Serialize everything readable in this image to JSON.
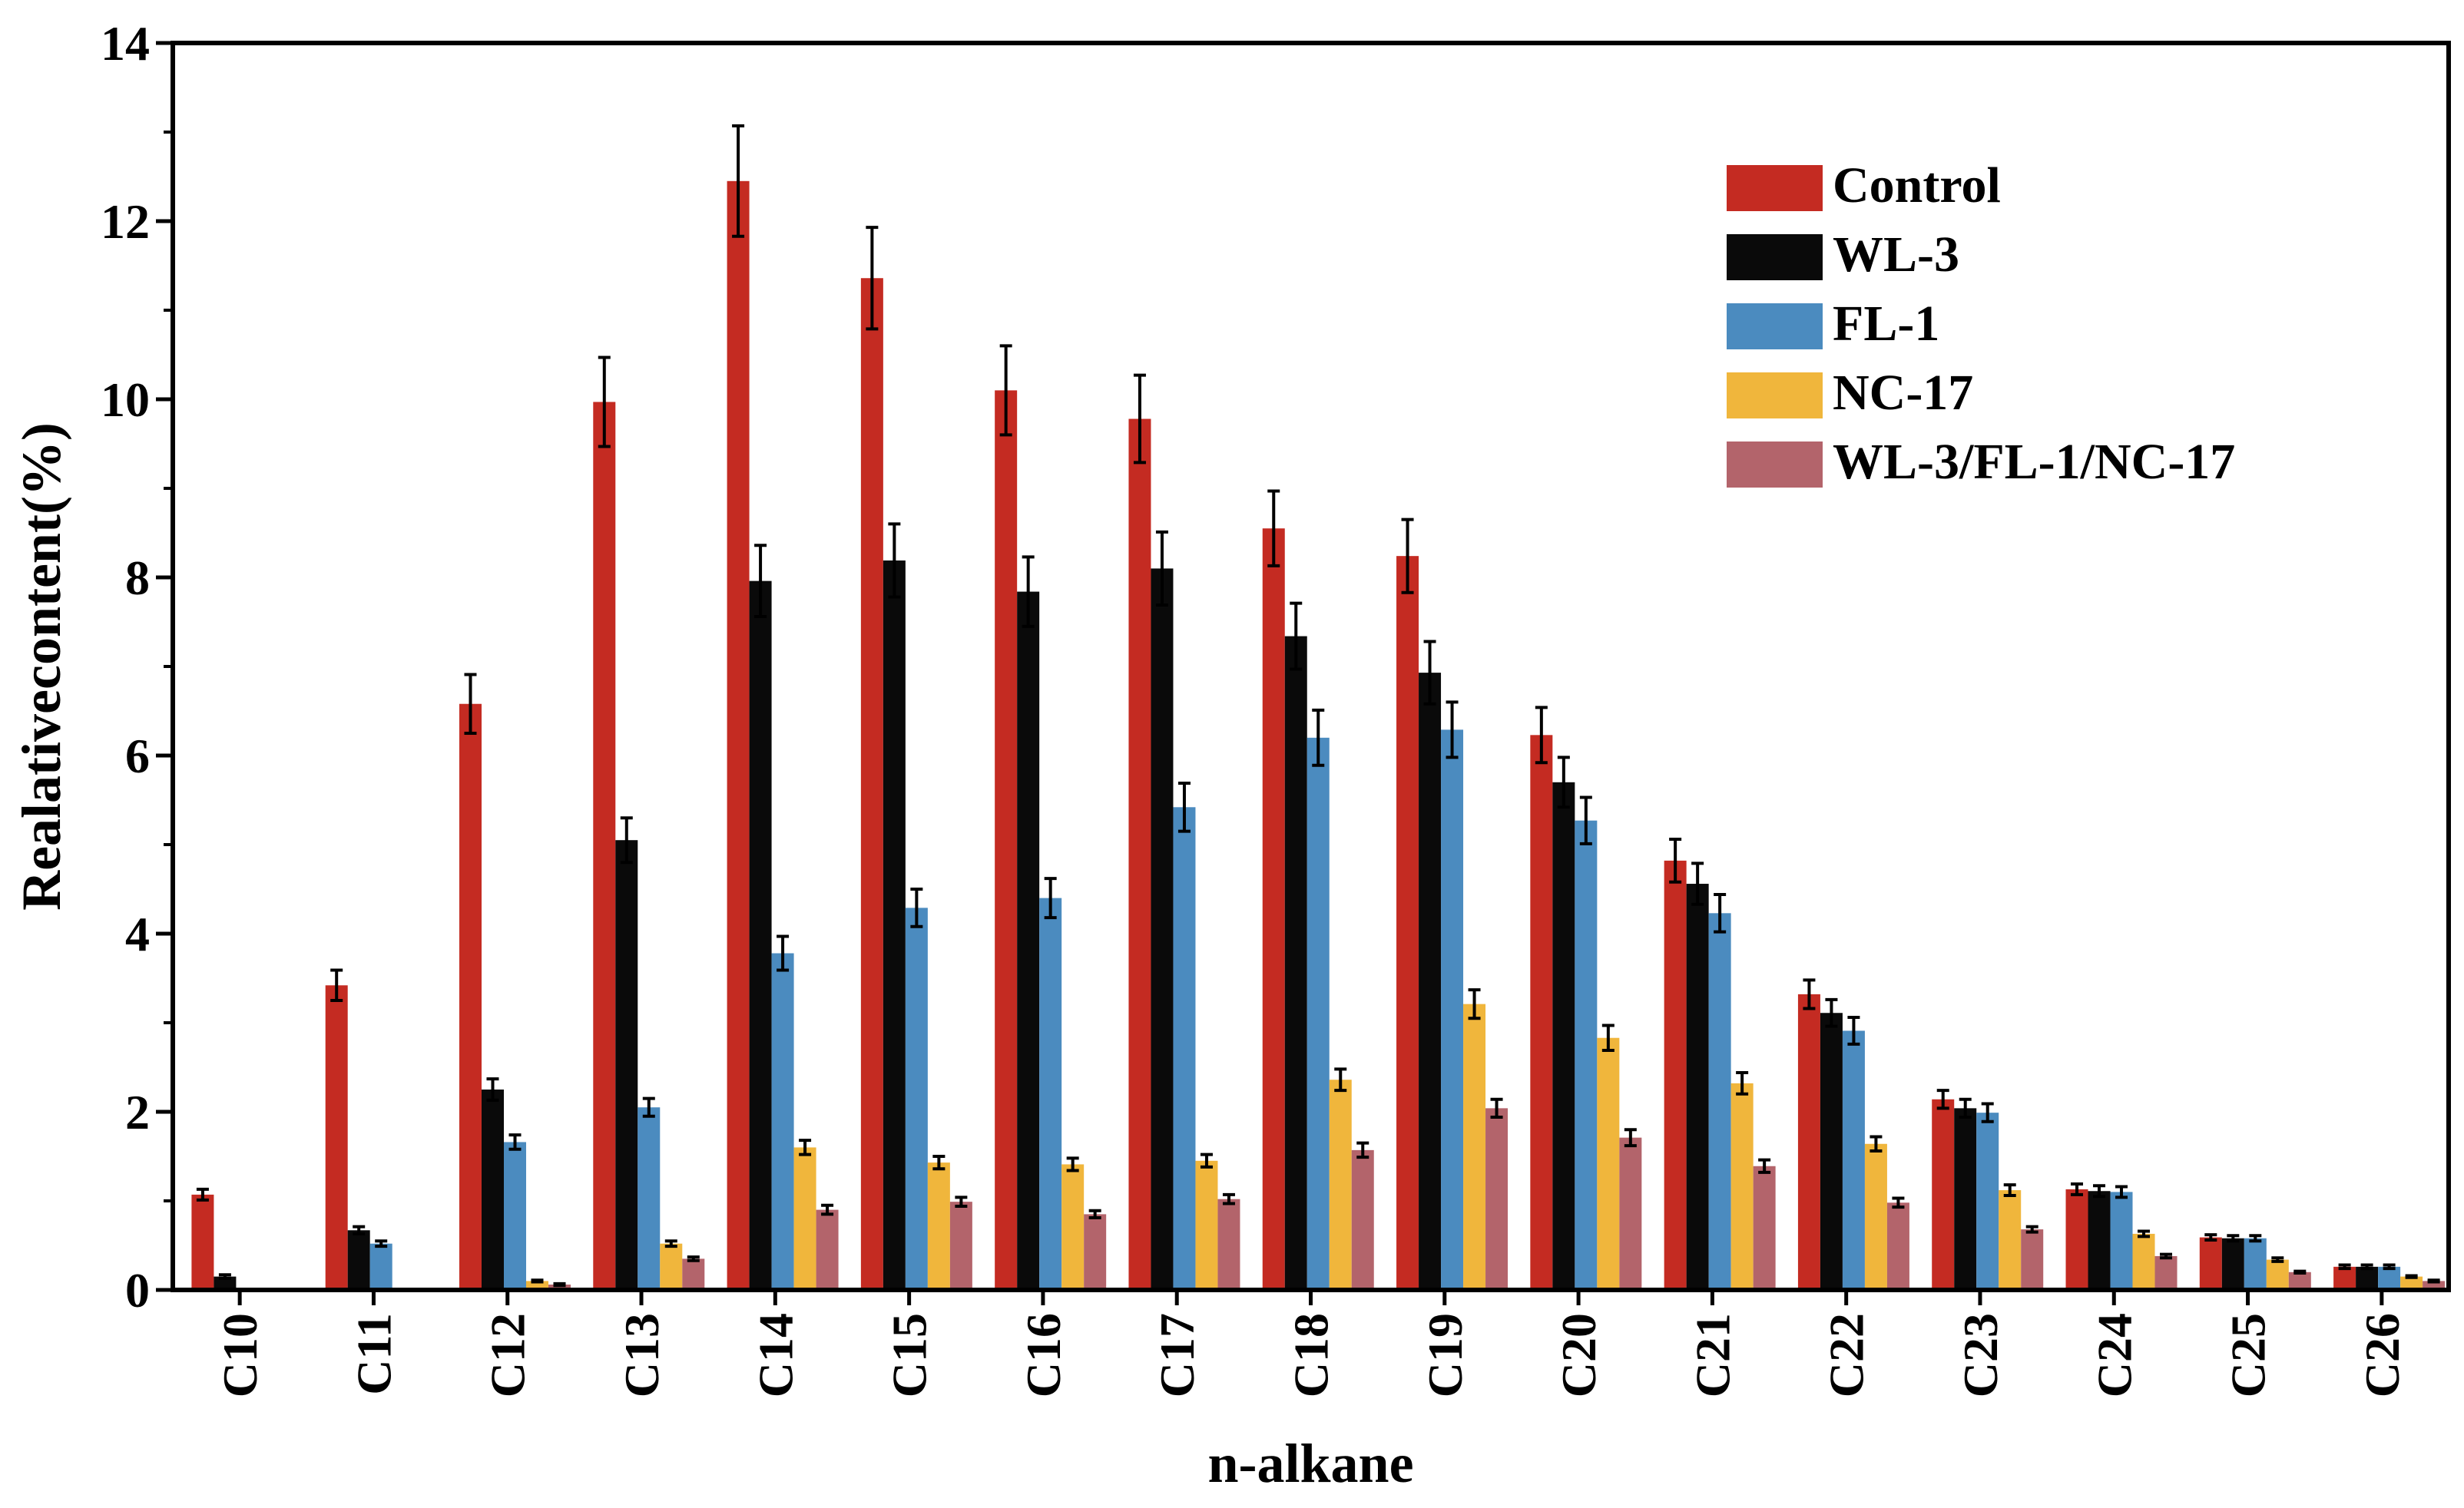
{
  "chart_data": {
    "type": "bar",
    "title": "",
    "xlabel": "n-alkane",
    "ylabel": "Realativecontent(%)",
    "ylim": [
      0,
      14
    ],
    "yticks": [
      0,
      2,
      4,
      6,
      8,
      10,
      12,
      14
    ],
    "legend_position": "top-right",
    "categories": [
      "C10",
      "C11",
      "C12",
      "C13",
      "C14",
      "C15",
      "C16",
      "C17",
      "C18",
      "C19",
      "C20",
      "C21",
      "C22",
      "C23",
      "C24",
      "C25",
      "C26"
    ],
    "series": [
      {
        "name": "Control",
        "color": "#c42b22",
        "values": [
          1.07,
          3.42,
          6.58,
          9.97,
          12.45,
          11.36,
          10.1,
          9.78,
          8.55,
          8.24,
          6.23,
          4.82,
          3.32,
          2.14,
          1.13,
          0.59,
          0.26
        ],
        "errors": [
          0.06,
          0.17,
          0.33,
          0.5,
          0.62,
          0.57,
          0.5,
          0.49,
          0.42,
          0.41,
          0.31,
          0.24,
          0.16,
          0.1,
          0.06,
          0.03,
          0.02
        ]
      },
      {
        "name": "WL-3",
        "color": "#0a0a0a",
        "values": [
          0.15,
          0.67,
          2.25,
          5.05,
          7.96,
          8.19,
          7.84,
          8.1,
          7.34,
          6.93,
          5.7,
          4.56,
          3.11,
          2.04,
          1.11,
          0.58,
          0.26
        ],
        "errors": [
          0.02,
          0.04,
          0.12,
          0.25,
          0.4,
          0.41,
          0.39,
          0.41,
          0.37,
          0.35,
          0.28,
          0.23,
          0.15,
          0.1,
          0.06,
          0.03,
          0.02
        ]
      },
      {
        "name": "FL-1",
        "color": "#4b8bbf",
        "values": [
          0,
          0.52,
          1.66,
          2.05,
          3.78,
          4.29,
          4.4,
          5.42,
          6.2,
          6.29,
          5.27,
          4.23,
          2.91,
          1.99,
          1.1,
          0.58,
          0.26
        ],
        "errors": [
          0,
          0.03,
          0.08,
          0.1,
          0.19,
          0.21,
          0.22,
          0.27,
          0.31,
          0.31,
          0.26,
          0.21,
          0.15,
          0.1,
          0.06,
          0.03,
          0.02
        ]
      },
      {
        "name": "NC-17",
        "color": "#f0b63c",
        "values": [
          0,
          0,
          0.1,
          0.52,
          1.6,
          1.43,
          1.41,
          1.45,
          2.36,
          3.21,
          2.83,
          2.32,
          1.64,
          1.12,
          0.63,
          0.34,
          0.15
        ],
        "errors": [
          0,
          0,
          0.01,
          0.03,
          0.08,
          0.07,
          0.07,
          0.07,
          0.12,
          0.16,
          0.14,
          0.12,
          0.08,
          0.06,
          0.03,
          0.02,
          0.01
        ]
      },
      {
        "name": "WL-3/FL-1/NC-17",
        "color": "#b3646b",
        "values": [
          0,
          0,
          0.06,
          0.35,
          0.9,
          0.99,
          0.85,
          1.02,
          1.57,
          2.04,
          1.71,
          1.39,
          0.98,
          0.68,
          0.38,
          0.2,
          0.1
        ],
        "errors": [
          0,
          0,
          0.01,
          0.02,
          0.05,
          0.05,
          0.04,
          0.05,
          0.08,
          0.1,
          0.09,
          0.07,
          0.05,
          0.03,
          0.02,
          0.01,
          0.01
        ]
      }
    ]
  }
}
